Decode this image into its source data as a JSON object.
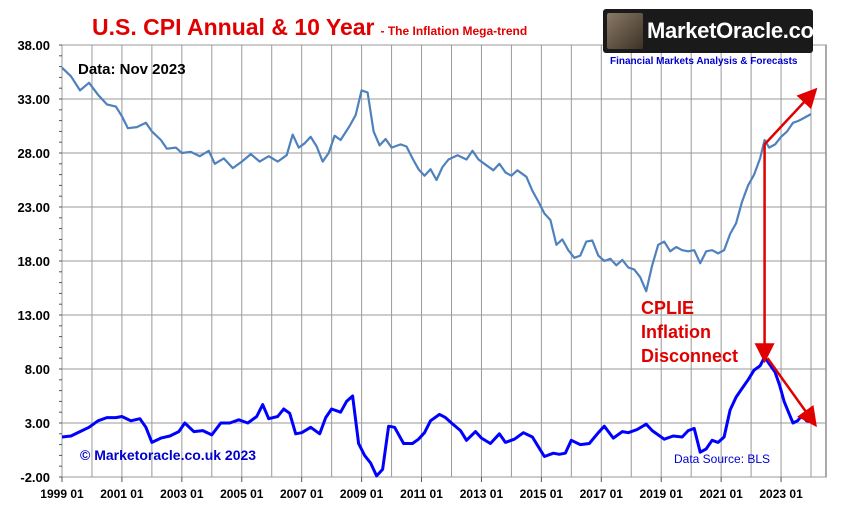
{
  "header": {
    "title": "U.S. CPI Annual & 10 Year",
    "subtitle": "- The Inflation Mega-trend",
    "data_as_of": "Data: Nov 2023"
  },
  "branding": {
    "logo_text": "MarketOracle.co.uk",
    "tagline": "Financial Markets Analysis & Forecasts",
    "copyright": "© Marketoracle.co.uk 2023",
    "source": "Data Source: BLS"
  },
  "annotation": {
    "lines": [
      "CPLIE",
      "Inflation",
      "Disconnect"
    ]
  },
  "colors": {
    "series_10yr": "#4f81bd",
    "series_annual": "#0000ff",
    "annotation": "#e00000",
    "title": "#e00000",
    "grid": "#9a9a9a"
  },
  "chart_data": {
    "type": "line",
    "x_ticks": [
      "1999 01",
      "2001 01",
      "2003 01",
      "2005 01",
      "2007 01",
      "2009 01",
      "2011 01",
      "2013 01",
      "2015 01",
      "2017 01",
      "2019 01",
      "2021 01",
      "2023 01"
    ],
    "y_ticks": [
      "38.00",
      "33.00",
      "28.00",
      "23.00",
      "18.00",
      "13.00",
      "8.00",
      "3.00",
      "-2.00"
    ],
    "ylim": [
      -2,
      38
    ],
    "xlim": [
      1999.0,
      2024.5
    ],
    "grid": true,
    "series": [
      {
        "points": [
          [
            1999.0,
            35.9
          ],
          [
            1999.3,
            35.1
          ],
          [
            1999.6,
            33.8
          ],
          [
            1999.9,
            34.5
          ],
          [
            2000.2,
            33.4
          ],
          [
            2000.5,
            32.5
          ],
          [
            2000.8,
            32.3
          ],
          [
            2001.0,
            31.4
          ],
          [
            2001.2,
            30.3
          ],
          [
            2001.5,
            30.4
          ],
          [
            2001.8,
            30.8
          ],
          [
            2002.0,
            30.0
          ],
          [
            2002.3,
            29.2
          ],
          [
            2002.5,
            28.4
          ],
          [
            2002.8,
            28.5
          ],
          [
            2003.0,
            28.0
          ],
          [
            2003.3,
            28.1
          ],
          [
            2003.6,
            27.7
          ],
          [
            2003.9,
            28.2
          ],
          [
            2004.1,
            27.0
          ],
          [
            2004.4,
            27.5
          ],
          [
            2004.7,
            26.6
          ],
          [
            2005.0,
            27.2
          ],
          [
            2005.3,
            27.9
          ],
          [
            2005.6,
            27.2
          ],
          [
            2005.9,
            27.7
          ],
          [
            2006.2,
            27.2
          ],
          [
            2006.5,
            27.8
          ],
          [
            2006.7,
            29.7
          ],
          [
            2006.9,
            28.5
          ],
          [
            2007.1,
            28.9
          ],
          [
            2007.3,
            29.5
          ],
          [
            2007.5,
            28.6
          ],
          [
            2007.7,
            27.2
          ],
          [
            2007.9,
            28.0
          ],
          [
            2008.1,
            29.6
          ],
          [
            2008.3,
            29.2
          ],
          [
            2008.6,
            30.5
          ],
          [
            2008.8,
            31.5
          ],
          [
            2009.0,
            33.8
          ],
          [
            2009.2,
            33.6
          ],
          [
            2009.4,
            30.0
          ],
          [
            2009.6,
            28.7
          ],
          [
            2009.8,
            29.3
          ],
          [
            2010.0,
            28.5
          ],
          [
            2010.3,
            28.8
          ],
          [
            2010.5,
            28.6
          ],
          [
            2010.7,
            27.5
          ],
          [
            2010.9,
            26.5
          ],
          [
            2011.1,
            25.9
          ],
          [
            2011.3,
            26.5
          ],
          [
            2011.5,
            25.5
          ],
          [
            2011.7,
            26.7
          ],
          [
            2011.9,
            27.4
          ],
          [
            2012.2,
            27.8
          ],
          [
            2012.5,
            27.4
          ],
          [
            2012.7,
            28.2
          ],
          [
            2012.9,
            27.4
          ],
          [
            2013.1,
            27.0
          ],
          [
            2013.4,
            26.4
          ],
          [
            2013.6,
            27.0
          ],
          [
            2013.8,
            26.2
          ],
          [
            2014.0,
            25.9
          ],
          [
            2014.2,
            26.4
          ],
          [
            2014.5,
            25.8
          ],
          [
            2014.7,
            24.5
          ],
          [
            2014.9,
            23.5
          ],
          [
            2015.1,
            22.4
          ],
          [
            2015.3,
            21.8
          ],
          [
            2015.5,
            19.5
          ],
          [
            2015.7,
            20.0
          ],
          [
            2015.9,
            19.0
          ],
          [
            2016.1,
            18.3
          ],
          [
            2016.3,
            18.5
          ],
          [
            2016.5,
            19.8
          ],
          [
            2016.7,
            19.9
          ],
          [
            2016.9,
            18.5
          ],
          [
            2017.1,
            18.0
          ],
          [
            2017.3,
            18.2
          ],
          [
            2017.5,
            17.6
          ],
          [
            2017.7,
            18.1
          ],
          [
            2017.9,
            17.4
          ],
          [
            2018.1,
            17.2
          ],
          [
            2018.3,
            16.5
          ],
          [
            2018.5,
            15.2
          ],
          [
            2018.7,
            17.6
          ],
          [
            2018.9,
            19.5
          ],
          [
            2019.1,
            19.8
          ],
          [
            2019.3,
            18.9
          ],
          [
            2019.5,
            19.3
          ],
          [
            2019.7,
            19.0
          ],
          [
            2019.9,
            18.9
          ],
          [
            2020.1,
            19.0
          ],
          [
            2020.3,
            17.8
          ],
          [
            2020.5,
            18.9
          ],
          [
            2020.7,
            19.0
          ],
          [
            2020.9,
            18.7
          ],
          [
            2021.1,
            19.0
          ],
          [
            2021.3,
            20.5
          ],
          [
            2021.5,
            21.5
          ],
          [
            2021.7,
            23.5
          ],
          [
            2021.9,
            25.0
          ],
          [
            2022.1,
            26.0
          ],
          [
            2022.3,
            27.5
          ],
          [
            2022.45,
            29.2
          ],
          [
            2022.6,
            28.5
          ],
          [
            2022.8,
            28.8
          ],
          [
            2023.0,
            29.5
          ],
          [
            2023.2,
            30.0
          ],
          [
            2023.4,
            30.8
          ],
          [
            2023.6,
            31.0
          ],
          [
            2023.8,
            31.3
          ],
          [
            2024.0,
            31.6
          ]
        ]
      },
      {
        "points": [
          [
            1999.0,
            1.7
          ],
          [
            1999.3,
            1.8
          ],
          [
            1999.6,
            2.2
          ],
          [
            1999.9,
            2.6
          ],
          [
            2000.2,
            3.2
          ],
          [
            2000.5,
            3.5
          ],
          [
            2000.8,
            3.5
          ],
          [
            2001.0,
            3.6
          ],
          [
            2001.3,
            3.2
          ],
          [
            2001.6,
            3.4
          ],
          [
            2001.8,
            2.6
          ],
          [
            2002.0,
            1.2
          ],
          [
            2002.3,
            1.6
          ],
          [
            2002.6,
            1.8
          ],
          [
            2002.9,
            2.2
          ],
          [
            2003.1,
            3.0
          ],
          [
            2003.4,
            2.2
          ],
          [
            2003.7,
            2.3
          ],
          [
            2004.0,
            1.9
          ],
          [
            2004.3,
            3.0
          ],
          [
            2004.6,
            3.0
          ],
          [
            2004.9,
            3.3
          ],
          [
            2005.2,
            3.0
          ],
          [
            2005.5,
            3.6
          ],
          [
            2005.7,
            4.7
          ],
          [
            2005.9,
            3.4
          ],
          [
            2006.2,
            3.6
          ],
          [
            2006.4,
            4.3
          ],
          [
            2006.6,
            3.9
          ],
          [
            2006.8,
            2.0
          ],
          [
            2007.0,
            2.1
          ],
          [
            2007.3,
            2.6
          ],
          [
            2007.6,
            2.0
          ],
          [
            2007.8,
            3.5
          ],
          [
            2008.0,
            4.3
          ],
          [
            2008.3,
            4.0
          ],
          [
            2008.5,
            5.0
          ],
          [
            2008.7,
            5.5
          ],
          [
            2008.9,
            1.1
          ],
          [
            2009.1,
            0.0
          ],
          [
            2009.3,
            -0.7
          ],
          [
            2009.5,
            -1.9
          ],
          [
            2009.7,
            -1.3
          ],
          [
            2009.9,
            2.7
          ],
          [
            2010.1,
            2.6
          ],
          [
            2010.4,
            1.1
          ],
          [
            2010.7,
            1.1
          ],
          [
            2010.9,
            1.5
          ],
          [
            2011.1,
            2.1
          ],
          [
            2011.3,
            3.2
          ],
          [
            2011.6,
            3.8
          ],
          [
            2011.8,
            3.5
          ],
          [
            2012.0,
            3.0
          ],
          [
            2012.3,
            2.3
          ],
          [
            2012.5,
            1.4
          ],
          [
            2012.8,
            2.2
          ],
          [
            2013.0,
            1.6
          ],
          [
            2013.3,
            1.1
          ],
          [
            2013.6,
            2.0
          ],
          [
            2013.8,
            1.2
          ],
          [
            2014.1,
            1.5
          ],
          [
            2014.4,
            2.1
          ],
          [
            2014.7,
            1.7
          ],
          [
            2014.9,
            0.8
          ],
          [
            2015.1,
            -0.1
          ],
          [
            2015.4,
            0.2
          ],
          [
            2015.6,
            0.1
          ],
          [
            2015.8,
            0.2
          ],
          [
            2016.0,
            1.4
          ],
          [
            2016.3,
            1.0
          ],
          [
            2016.6,
            1.1
          ],
          [
            2016.9,
            2.1
          ],
          [
            2017.1,
            2.7
          ],
          [
            2017.4,
            1.6
          ],
          [
            2017.7,
            2.2
          ],
          [
            2017.9,
            2.1
          ],
          [
            2018.2,
            2.4
          ],
          [
            2018.5,
            2.9
          ],
          [
            2018.7,
            2.3
          ],
          [
            2018.9,
            1.9
          ],
          [
            2019.1,
            1.5
          ],
          [
            2019.4,
            1.8
          ],
          [
            2019.7,
            1.7
          ],
          [
            2019.9,
            2.3
          ],
          [
            2020.1,
            2.5
          ],
          [
            2020.3,
            0.3
          ],
          [
            2020.5,
            0.6
          ],
          [
            2020.7,
            1.4
          ],
          [
            2020.9,
            1.2
          ],
          [
            2021.1,
            1.7
          ],
          [
            2021.3,
            4.2
          ],
          [
            2021.5,
            5.4
          ],
          [
            2021.7,
            6.2
          ],
          [
            2021.9,
            7.0
          ],
          [
            2022.1,
            7.9
          ],
          [
            2022.3,
            8.3
          ],
          [
            2022.45,
            9.1
          ],
          [
            2022.6,
            8.5
          ],
          [
            2022.8,
            7.7
          ],
          [
            2022.95,
            6.5
          ],
          [
            2023.1,
            5.0
          ],
          [
            2023.25,
            4.0
          ],
          [
            2023.4,
            3.0
          ],
          [
            2023.55,
            3.2
          ],
          [
            2023.7,
            3.7
          ],
          [
            2023.85,
            3.2
          ],
          [
            2024.0,
            3.1
          ]
        ]
      }
    ],
    "arrows": [
      {
        "from": [
          2022.45,
          28.8
        ],
        "to": [
          2024.1,
          33.7
        ]
      },
      {
        "from": [
          2022.45,
          28.8
        ],
        "to": [
          2022.45,
          9.0
        ]
      },
      {
        "from": [
          2022.55,
          9.0
        ],
        "to": [
          2024.1,
          3.0
        ]
      }
    ]
  }
}
